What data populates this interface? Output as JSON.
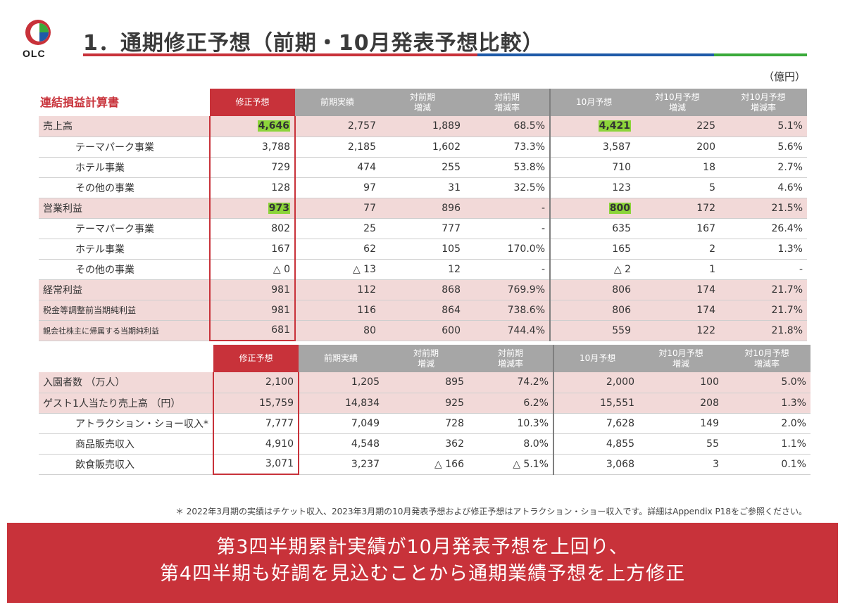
{
  "logo": {
    "text": "OLC"
  },
  "title": "1．通期修正予想（前期・10月発表予想比較）",
  "unit": "（億円）",
  "table1": {
    "section_label": "連結損益計算書",
    "headers": [
      "修正予想",
      "前期実績",
      "対前期\n増減",
      "対前期\n増減率",
      "10月予想",
      "対10月予想\n増減",
      "対10月予想\n増減率"
    ],
    "rows": [
      {
        "label": "売上高",
        "values": [
          "4,646",
          "2,757",
          "1,889",
          "68.5%",
          "4,421",
          "225",
          "5.1%"
        ]
      },
      {
        "label": "テーマパーク事業",
        "values": [
          "3,788",
          "2,185",
          "1,602",
          "73.3%",
          "3,587",
          "200",
          "5.6%"
        ]
      },
      {
        "label": "ホテル事業",
        "values": [
          "729",
          "474",
          "255",
          "53.8%",
          "710",
          "18",
          "2.7%"
        ]
      },
      {
        "label": "その他の事業",
        "values": [
          "128",
          "97",
          "31",
          "32.5%",
          "123",
          "5",
          "4.6%"
        ]
      },
      {
        "label": "営業利益",
        "values": [
          "973",
          "77",
          "896",
          "-",
          "800",
          "172",
          "21.5%"
        ]
      },
      {
        "label": "テーマパーク事業",
        "values": [
          "802",
          "25",
          "777",
          "-",
          "635",
          "167",
          "26.4%"
        ]
      },
      {
        "label": "ホテル事業",
        "values": [
          "167",
          "62",
          "105",
          "170.0%",
          "165",
          "2",
          "1.3%"
        ]
      },
      {
        "label": "その他の事業",
        "values": [
          "△ 0",
          "△ 13",
          "12",
          "-",
          "△ 2",
          "1",
          "-"
        ]
      },
      {
        "label": "経常利益",
        "values": [
          "981",
          "112",
          "868",
          "769.9%",
          "806",
          "174",
          "21.7%"
        ]
      },
      {
        "label": "税金等調整前当期純利益",
        "values": [
          "981",
          "116",
          "864",
          "738.6%",
          "806",
          "174",
          "21.7%"
        ]
      },
      {
        "label": "親会社株主に帰属する当期純利益",
        "values": [
          "681",
          "80",
          "600",
          "744.4%",
          "559",
          "122",
          "21.8%"
        ]
      }
    ]
  },
  "table2": {
    "headers": [
      "修正予想",
      "前期実績",
      "対前期\n増減",
      "対前期\n増減率",
      "10月予想",
      "対10月予想\n増減",
      "対10月予想\n増減率"
    ],
    "rows": [
      {
        "label": "入園者数 （万人）",
        "values": [
          "2,100",
          "1,205",
          "895",
          "74.2%",
          "2,000",
          "100",
          "5.0%"
        ]
      },
      {
        "label": "ゲスト1人当たり売上高 （円）",
        "values": [
          "15,759",
          "14,834",
          "925",
          "6.2%",
          "15,551",
          "208",
          "1.3%"
        ]
      },
      {
        "label": "アトラクション・ショー収入*",
        "values": [
          "7,777",
          "7,049",
          "728",
          "10.3%",
          "7,628",
          "149",
          "2.0%"
        ]
      },
      {
        "label": "商品販売収入",
        "values": [
          "4,910",
          "4,548",
          "362",
          "8.0%",
          "4,855",
          "55",
          "1.1%"
        ]
      },
      {
        "label": "飲食販売収入",
        "values": [
          "3,071",
          "3,237",
          "△ 166",
          "△ 5.1%",
          "3,068",
          "3",
          "0.1%"
        ]
      }
    ]
  },
  "footnote": "＊ 2022年3月期の実績はチケット収入、2023年3月期の10月発表予想および修正予想はアトラクション・ショー収入です。詳細はAppendix P18をご参照ください。",
  "banner": {
    "line1": "第3四半期累計実績が10月発表予想を上回り、",
    "line2": "第4四半期も好調を見込むことから通期業績予想を上方修正"
  },
  "colors": {
    "accent_red": "#c8323a",
    "accent_blue": "#1e5aa8",
    "accent_green": "#3aaa3a",
    "header_gray": "#a6a6a6",
    "row_pink": "#f2d9d8",
    "highlight_green": "#8cd43a"
  }
}
